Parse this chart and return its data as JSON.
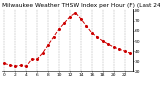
{
  "title": "Milwaukee Weather THSW Index per Hour (F) (Last 24 Hours)",
  "hours": [
    0,
    1,
    2,
    3,
    4,
    5,
    6,
    7,
    8,
    9,
    10,
    11,
    12,
    13,
    14,
    15,
    16,
    17,
    18,
    19,
    20,
    21,
    22,
    23
  ],
  "values": [
    28,
    26,
    25,
    26,
    25,
    32,
    32,
    38,
    46,
    54,
    62,
    68,
    74,
    78,
    72,
    65,
    58,
    54,
    50,
    47,
    44,
    42,
    40,
    38
  ],
  "line_color": "#cc0000",
  "marker": "o",
  "marker_size": 1.2,
  "line_style": "--",
  "line_width": 0.7,
  "bg_color": "#ffffff",
  "plot_bg_color": "#ffffff",
  "grid_color": "#aaaaaa",
  "grid_style": "--",
  "text_color": "#000000",
  "ylim": [
    20,
    82
  ],
  "yticks": [
    20,
    30,
    40,
    50,
    60,
    70,
    80
  ],
  "title_fontsize": 4.2,
  "tick_fontsize": 3.2,
  "xlabel_every": 2
}
